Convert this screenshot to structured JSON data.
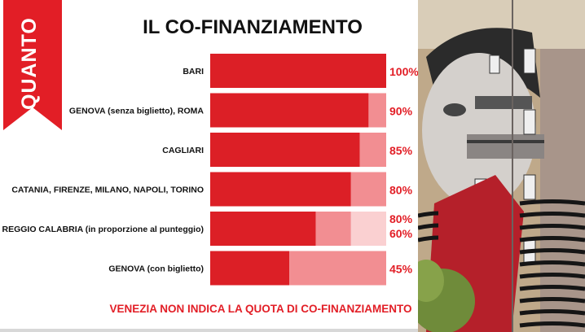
{
  "header": {
    "ribbon_label": "QUANTO",
    "title": "IL CO-FINANZIAMENTO"
  },
  "footnote": "VENEZIA NON INDICA LA QUOTA DI CO-FINANZIAMENTO",
  "colors": {
    "accent": "#e21e26",
    "segment_dark": "#dc1f26",
    "segment_mid": "#f28e92",
    "segment_light": "#fad0d1"
  },
  "chart_data": {
    "type": "bar",
    "orientation": "horizontal",
    "stacked": true,
    "title": "IL CO-FINANZIAMENTO",
    "xlim": [
      0,
      100
    ],
    "rows": [
      {
        "category": "BARI",
        "segments": [
          100
        ],
        "labels": [
          "100%"
        ]
      },
      {
        "category": "GENOVA (senza biglietto), ROMA",
        "segments": [
          90,
          10
        ],
        "labels": [
          "90%"
        ]
      },
      {
        "category": "CAGLIARI",
        "segments": [
          85,
          15
        ],
        "labels": [
          "85%"
        ]
      },
      {
        "category": "CATANIA, FIRENZE, MILANO, NAPOLI, TORINO",
        "segments": [
          80,
          20
        ],
        "labels": [
          "80%"
        ]
      },
      {
        "category": "REGGIO CALABRIA (in proporzione al punteggio)",
        "segments": [
          60,
          20,
          20
        ],
        "labels": [
          "80%",
          "60%"
        ]
      },
      {
        "category": "GENOVA (con biglietto)",
        "segments": [
          45,
          55
        ],
        "labels": [
          "45%"
        ]
      }
    ]
  },
  "mural": {
    "icon": "street-art-mural-photo"
  }
}
